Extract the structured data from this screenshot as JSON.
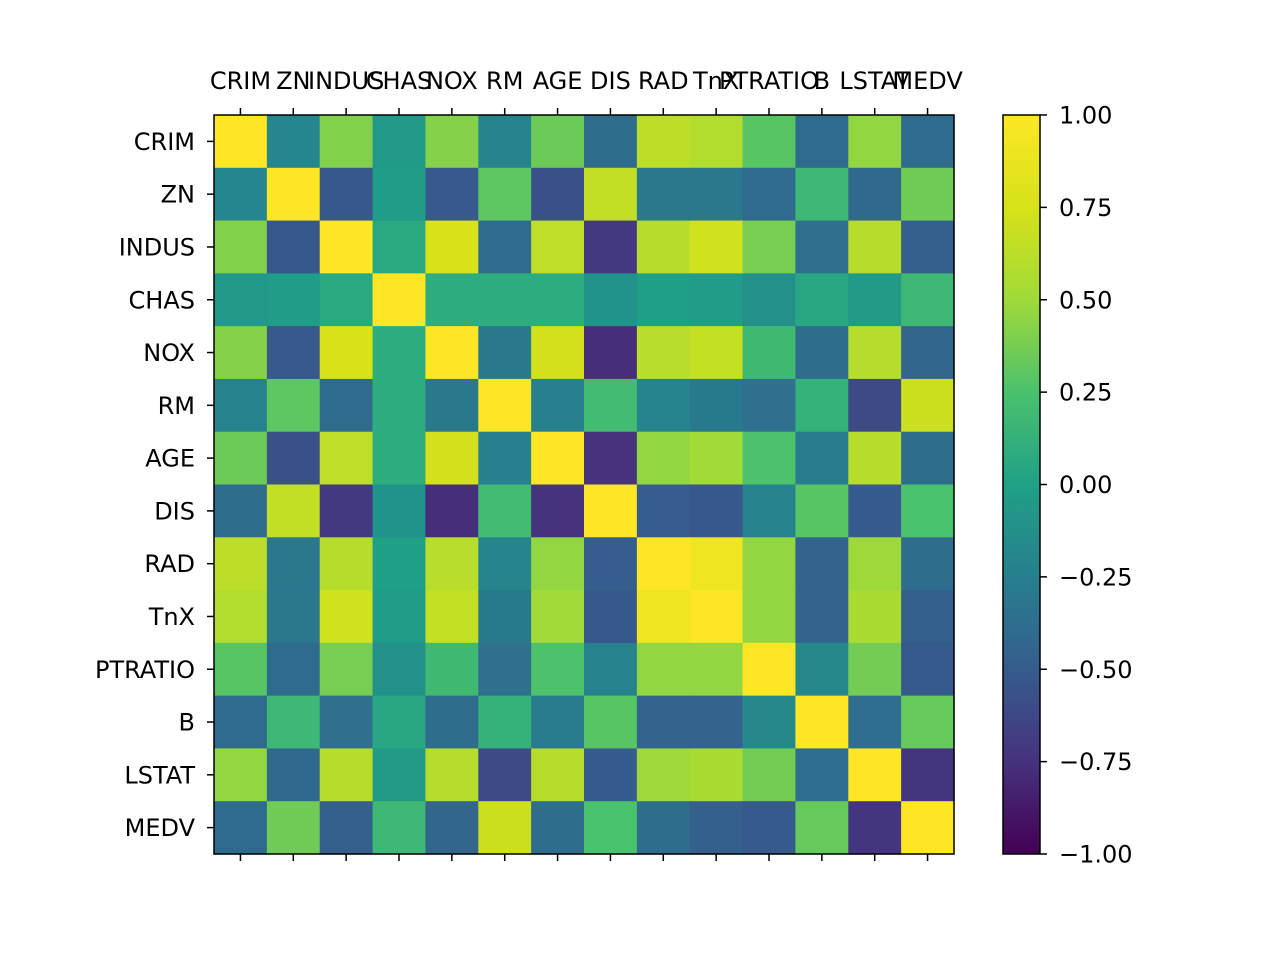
{
  "chart_data": {
    "type": "heatmap",
    "title": "",
    "xlabel": "",
    "ylabel": "",
    "x_labels": [
      "CRIM",
      "ZN",
      "INDUS",
      "CHAS",
      "NOX",
      "RM",
      "AGE",
      "DIS",
      "RAD",
      "TnX",
      "PTRATIO",
      "B",
      "LSTAT",
      "MEDV"
    ],
    "y_labels": [
      "CRIM",
      "ZN",
      "INDUS",
      "CHAS",
      "NOX",
      "RM",
      "AGE",
      "DIS",
      "RAD",
      "TnX",
      "PTRATIO",
      "B",
      "LSTAT",
      "MEDV"
    ],
    "values": [
      [
        1.0,
        -0.2,
        0.41,
        -0.06,
        0.42,
        -0.22,
        0.35,
        -0.38,
        0.63,
        0.58,
        0.29,
        -0.39,
        0.46,
        -0.39
      ],
      [
        -0.2,
        1.0,
        -0.53,
        -0.04,
        -0.52,
        0.31,
        -0.57,
        0.66,
        -0.31,
        -0.31,
        -0.39,
        0.18,
        -0.41,
        0.36
      ],
      [
        0.41,
        -0.53,
        1.0,
        0.06,
        0.76,
        -0.39,
        0.64,
        -0.71,
        0.6,
        0.72,
        0.38,
        -0.36,
        0.6,
        -0.48
      ],
      [
        -0.06,
        -0.04,
        0.06,
        1.0,
        0.09,
        0.09,
        0.09,
        -0.1,
        -0.01,
        -0.04,
        -0.12,
        0.05,
        -0.05,
        0.18
      ],
      [
        0.42,
        -0.52,
        0.76,
        0.09,
        1.0,
        -0.3,
        0.73,
        -0.77,
        0.61,
        0.67,
        0.19,
        -0.38,
        0.59,
        -0.43
      ],
      [
        -0.22,
        0.31,
        -0.39,
        0.09,
        -0.3,
        1.0,
        -0.24,
        0.21,
        -0.21,
        -0.29,
        -0.36,
        0.13,
        -0.61,
        0.7
      ],
      [
        0.35,
        -0.57,
        0.64,
        0.09,
        0.73,
        -0.24,
        1.0,
        -0.75,
        0.46,
        0.51,
        0.26,
        -0.27,
        0.6,
        -0.38
      ],
      [
        -0.38,
        0.66,
        -0.71,
        -0.1,
        -0.77,
        0.21,
        -0.75,
        1.0,
        -0.49,
        -0.53,
        -0.23,
        0.29,
        -0.5,
        0.25
      ],
      [
        0.63,
        -0.31,
        0.6,
        -0.01,
        0.61,
        -0.21,
        0.46,
        -0.49,
        1.0,
        0.91,
        0.46,
        -0.44,
        0.49,
        -0.38
      ],
      [
        0.58,
        -0.31,
        0.72,
        -0.04,
        0.67,
        -0.29,
        0.51,
        -0.53,
        0.91,
        1.0,
        0.46,
        -0.44,
        0.54,
        -0.47
      ],
      [
        0.29,
        -0.39,
        0.38,
        -0.12,
        0.19,
        -0.36,
        0.26,
        -0.23,
        0.46,
        0.46,
        1.0,
        -0.18,
        0.37,
        -0.51
      ],
      [
        -0.39,
        0.18,
        -0.36,
        0.05,
        -0.38,
        0.13,
        -0.27,
        0.29,
        -0.44,
        -0.44,
        -0.18,
        1.0,
        -0.37,
        0.33
      ],
      [
        0.46,
        -0.41,
        0.6,
        -0.05,
        0.59,
        -0.61,
        0.6,
        -0.5,
        0.49,
        0.54,
        0.37,
        -0.37,
        1.0,
        -0.74
      ],
      [
        -0.39,
        0.36,
        -0.48,
        0.18,
        -0.43,
        0.7,
        -0.38,
        0.25,
        -0.38,
        -0.47,
        -0.51,
        0.33,
        -0.74,
        1.0
      ]
    ],
    "vmin": -1.0,
    "vmax": 1.0,
    "colormap": "viridis",
    "colorbar_ticks": [
      "1.00",
      "0.75",
      "0.50",
      "0.25",
      "0.00",
      "−0.25",
      "−0.50",
      "−0.75",
      "−1.00"
    ],
    "colorbar_tick_values": [
      1.0,
      0.75,
      0.5,
      0.25,
      0.0,
      -0.25,
      -0.5,
      -0.75,
      -1.0
    ],
    "x_labels_position": "top",
    "grid": false,
    "legend": "colorbar-right"
  }
}
